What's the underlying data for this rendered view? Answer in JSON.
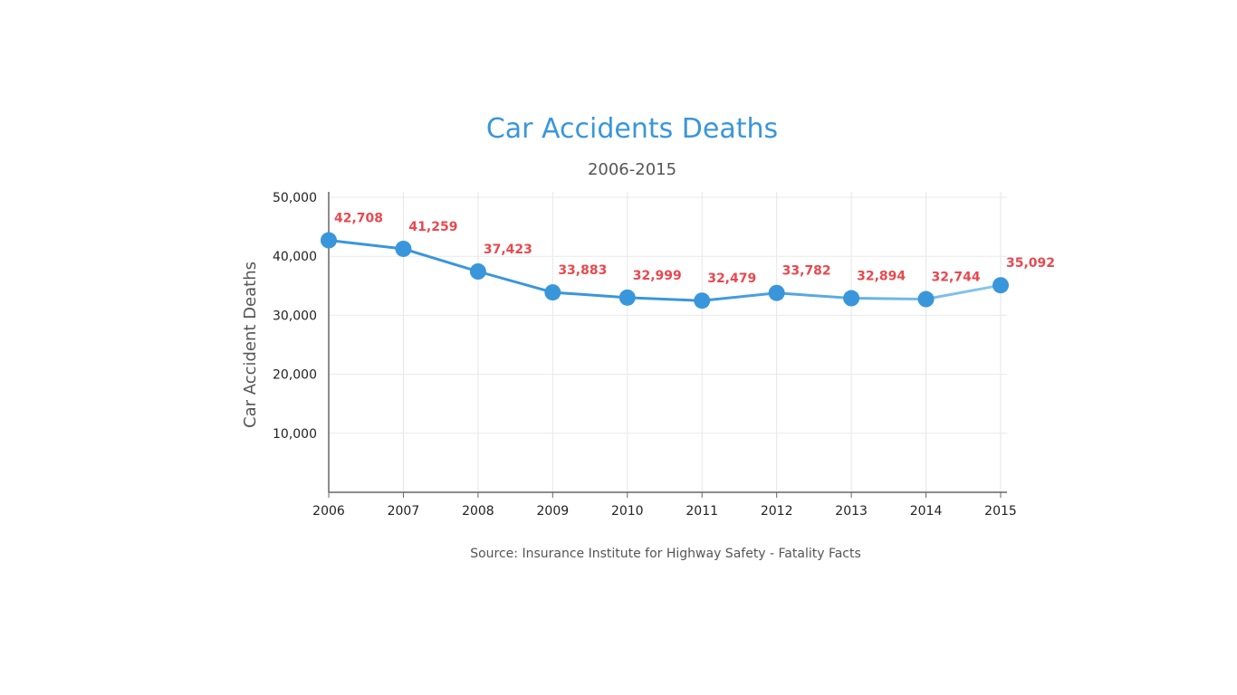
{
  "chart_data": {
    "type": "line",
    "title": "Car Accidents Deaths",
    "subtitle": "2006-2015",
    "xlabel": "",
    "ylabel": "Car Accident Deaths",
    "x": [
      "2006",
      "2007",
      "2008",
      "2009",
      "2010",
      "2011",
      "2012",
      "2013",
      "2014",
      "2015"
    ],
    "series": [
      {
        "values": [
          42708,
          41259,
          37423,
          33883,
          32999,
          32479,
          33782,
          32894,
          32744,
          35092
        ],
        "value_labels": [
          "42,708",
          "41,259",
          "37,423",
          "33,883",
          "32,999",
          "32,479",
          "33,782",
          "32,894",
          "32,744",
          "35,092"
        ]
      }
    ],
    "ylim": [
      0,
      50000
    ],
    "yticks": [
      10000,
      20000,
      30000,
      40000,
      50000
    ],
    "ytick_labels": [
      "10,000",
      "20,000",
      "30,000",
      "40,000",
      "50,000"
    ],
    "grid": true,
    "line_color": "#3a96db",
    "line_color_end": "#8cc7ee",
    "label_color": "#e8494f",
    "source": "Source: Insurance Institute for Highway Safety - Fatality Facts"
  }
}
